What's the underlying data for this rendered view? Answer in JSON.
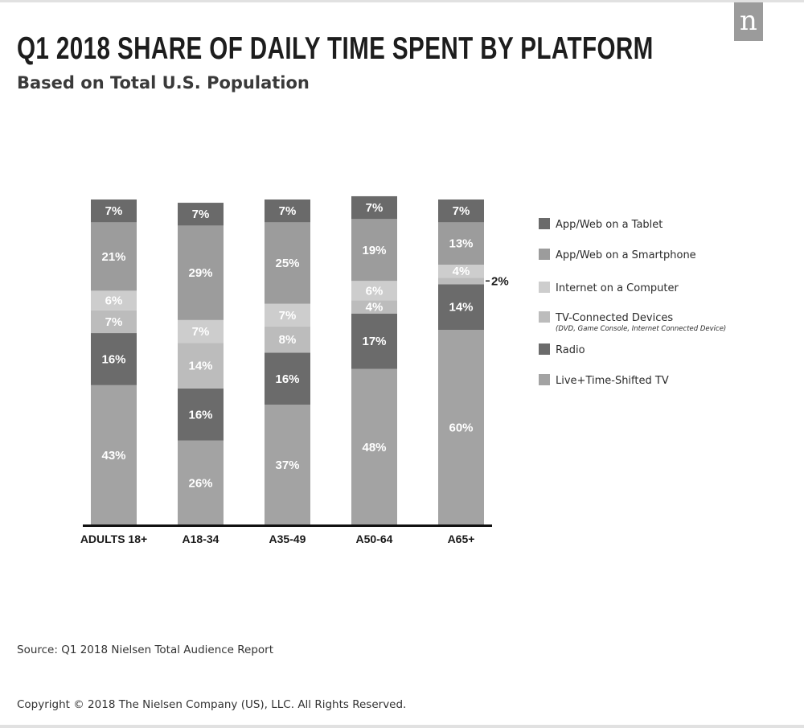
{
  "header": {
    "logo_letter": "n",
    "title": "Q1 2018 SHARE OF DAILY TIME SPENT BY PLATFORM",
    "subtitle": "Based on Total U.S. Population"
  },
  "chart_data": {
    "type": "bar",
    "stacked": true,
    "title": "Q1 2018 SHARE OF DAILY TIME SPENT BY PLATFORM",
    "subtitle": "Based on Total U.S. Population",
    "categories": [
      "ADULTS 18+",
      "A18-34",
      "A35-49",
      "A50-64",
      "A65+"
    ],
    "series": [
      {
        "name": "Live+Time-Shifted TV",
        "color": "#a3a3a3",
        "label_color": "#ffffff",
        "values": [
          43,
          26,
          37,
          48,
          60
        ]
      },
      {
        "name": "Radio",
        "color": "#6b6b6b",
        "label_color": "#ffffff",
        "values": [
          16,
          16,
          16,
          17,
          14
        ]
      },
      {
        "name": "TV-Connected Devices",
        "note": "(DVD, Game Console, Internet Connected Device)",
        "color": "#bcbcbc",
        "label_color": "#ffffff",
        "values": [
          7,
          14,
          8,
          4,
          2
        ]
      },
      {
        "name": "Internet on a Computer",
        "color": "#cdcdcd",
        "label_color": "#ffffff",
        "values": [
          6,
          7,
          7,
          6,
          4
        ]
      },
      {
        "name": "App/Web on a Smartphone",
        "color": "#9c9c9c",
        "label_color": "#ffffff",
        "values": [
          21,
          29,
          25,
          19,
          13
        ]
      },
      {
        "name": "App/Web on a Tablet",
        "color": "#6a6a6a",
        "label_color": "#ffffff",
        "values": [
          7,
          7,
          7,
          7,
          7
        ]
      }
    ],
    "legend_order": [
      "App/Web on a Tablet",
      "App/Web on a Smartphone",
      "Internet on a Computer",
      "TV-Connected Devices",
      "Radio",
      "Live+Time-Shifted TV"
    ],
    "legend_position": "right",
    "outside_labels": [
      {
        "category": "A65+",
        "series": "TV-Connected Devices",
        "text": "2%"
      }
    ],
    "value_suffix": "%",
    "ylim": [
      0,
      100
    ],
    "grid": false
  },
  "footer": {
    "source": "Source: Q1 2018 Nielsen Total Audience Report",
    "copyright": "Copyright © 2018 The Nielsen Company (US), LLC. All Rights Reserved."
  }
}
